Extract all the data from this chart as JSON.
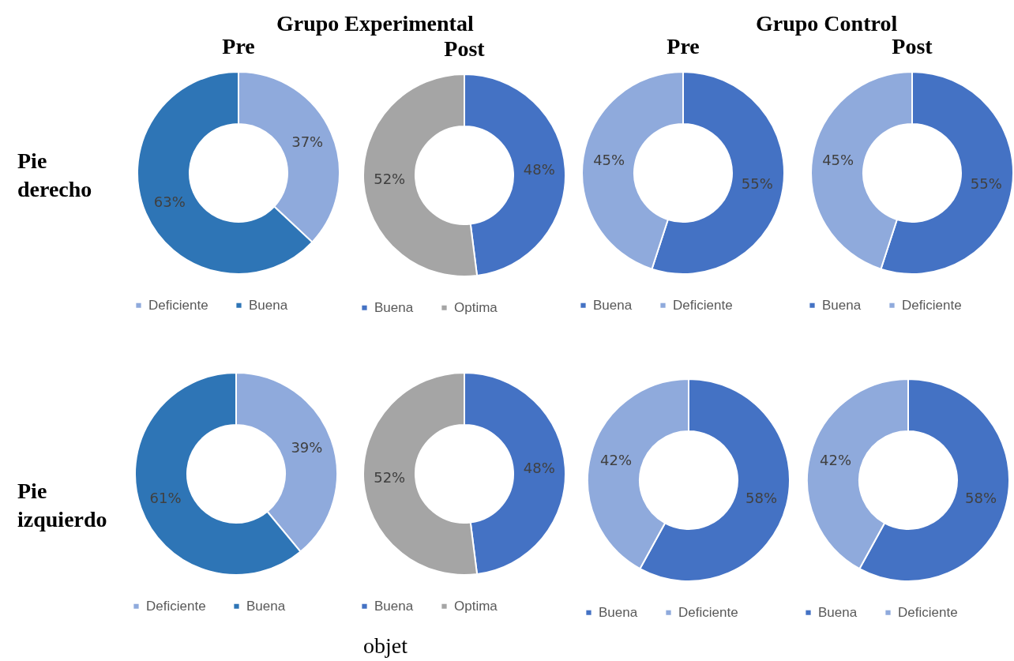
{
  "chart_data": [
    {
      "type": "donut",
      "title": "Pre",
      "categories": [
        "Deficiente",
        "Buena"
      ],
      "values": [
        37,
        63
      ],
      "colors": [
        "#8faadc",
        "#2e75b6"
      ],
      "value_labels": [
        "37%",
        "63%"
      ],
      "legend": "bottom"
    },
    {
      "type": "donut",
      "title": "Post",
      "categories": [
        "Buena",
        "Optima"
      ],
      "values": [
        48,
        52
      ],
      "colors": [
        "#4472c4",
        "#a5a5a5"
      ],
      "value_labels": [
        "48%",
        "52%"
      ],
      "legend": "bottom"
    },
    {
      "type": "donut",
      "title": "Pre",
      "categories": [
        "Buena",
        "Deficiente"
      ],
      "values": [
        55,
        45
      ],
      "colors": [
        "#4472c4",
        "#8faadc"
      ],
      "value_labels": [
        "55%",
        "45%"
      ],
      "legend": "bottom"
    },
    {
      "type": "donut",
      "title": "Post",
      "categories": [
        "Buena",
        "Deficiente"
      ],
      "values": [
        55,
        45
      ],
      "colors": [
        "#4472c4",
        "#8faadc"
      ],
      "value_labels": [
        "55%",
        "45%"
      ],
      "legend": "bottom"
    },
    {
      "type": "donut",
      "categories": [
        "Deficiente",
        "Buena"
      ],
      "values": [
        39,
        61
      ],
      "colors": [
        "#8faadc",
        "#2e75b6"
      ],
      "value_labels": [
        "39%",
        "61%"
      ],
      "legend": "bottom"
    },
    {
      "type": "donut",
      "categories": [
        "Buena",
        "Optima"
      ],
      "values": [
        48,
        52
      ],
      "colors": [
        "#4472c4",
        "#a5a5a5"
      ],
      "value_labels": [
        "48%",
        "52%"
      ],
      "legend": "bottom"
    },
    {
      "type": "donut",
      "categories": [
        "Buena",
        "Deficiente"
      ],
      "values": [
        58,
        42
      ],
      "colors": [
        "#4472c4",
        "#8faadc"
      ],
      "value_labels": [
        "58%",
        "42%"
      ],
      "legend": "bottom"
    },
    {
      "type": "donut",
      "categories": [
        "Buena",
        "Deficiente"
      ],
      "values": [
        58,
        42
      ],
      "colors": [
        "#4472c4",
        "#8faadc"
      ],
      "value_labels": [
        "58%",
        "42%"
      ],
      "legend": "bottom"
    },
    {
      "type": "other",
      "annotations": [
        "Grupo Experimental",
        "Grupo Control",
        "Pie derecho",
        "Pie izquierdo",
        "objet"
      ]
    }
  ]
}
